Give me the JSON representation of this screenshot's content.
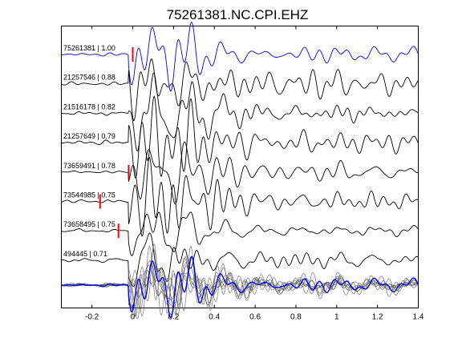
{
  "chart_data": {
    "type": "line",
    "title": "75261381.NC.CPI.EHZ",
    "xlabel": "",
    "ylabel": "",
    "xlim": [
      -0.35,
      1.4
    ],
    "x_ticks": [
      -0.2,
      0,
      0.2,
      0.4,
      0.6,
      0.8,
      1,
      1.2,
      1.4
    ],
    "x_tick_labels": [
      "-0.2",
      "0",
      "0.2",
      "0.4",
      "0.6",
      "0.8",
      "1",
      "1.2",
      "1.4"
    ],
    "grid": false,
    "traces": [
      {
        "label": "75261381 | 1.00",
        "color": "#0000ff",
        "pick": 0.0
      },
      {
        "label": "21257546 | 0.88",
        "color": "#000000",
        "pick": null
      },
      {
        "label": "21516178 | 0.82",
        "color": "#000000",
        "pick": null
      },
      {
        "label": "21257649 | 0.79",
        "color": "#000000",
        "pick": null
      },
      {
        "label": "73659491 | 0.78",
        "color": "#000000",
        "pick": -0.02
      },
      {
        "label": "73544985 | 0.75",
        "color": "#000000",
        "pick": -0.16
      },
      {
        "label": "73658495 | 0.75",
        "color": "#000000",
        "pick": -0.07
      },
      {
        "label": "494445 | 0.71",
        "color": "#000000",
        "pick": null
      }
    ],
    "stack": {
      "overlay_color": "#555555",
      "reference_color": "#0000ff"
    },
    "pick_color": "#ff0000"
  }
}
